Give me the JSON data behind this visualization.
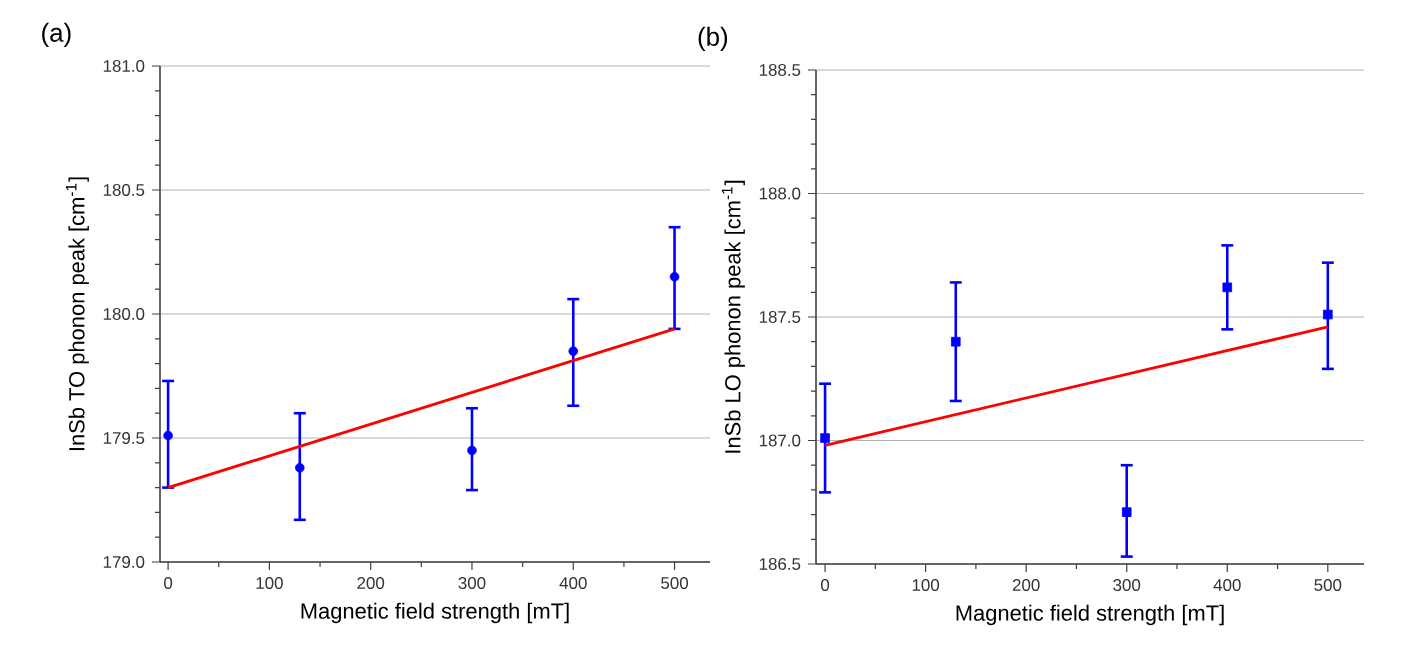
{
  "chart_data": [
    {
      "type": "scatter",
      "title": "(a)",
      "xlabel": "Magnetic field strength [mT]",
      "ylabel": "InSb TO phonon peak [cm$^{-1}$]",
      "xlim": [
        -8,
        535
      ],
      "ylim": [
        179.0,
        181.0
      ],
      "xticks": [
        0,
        100,
        200,
        300,
        400,
        500
      ],
      "yticks": [
        {
          "value": 179.0,
          "label": "179.0"
        },
        {
          "value": 179.5,
          "label": "179.5"
        },
        {
          "value": 180.0,
          "label": "180.0"
        },
        {
          "value": 180.5,
          "label": "180.5"
        },
        {
          "value": 181.0,
          "label": "181.0"
        }
      ],
      "grid": "y",
      "series": [
        {
          "color": "#0000ff",
          "marker": "circle",
          "x": [
            0,
            130,
            300,
            400,
            500
          ],
          "values": [
            179.51,
            179.38,
            179.45,
            179.85,
            180.15
          ],
          "errors": [
            [
              179.3,
              179.73
            ],
            [
              179.17,
              179.6
            ],
            [
              179.29,
              179.62
            ],
            [
              179.63,
              180.06
            ],
            [
              179.94,
              180.35
            ]
          ]
        },
        {
          "type": "line",
          "color": "#ff0000",
          "x": [
            0,
            500
          ],
          "values": [
            179.3,
            179.94
          ]
        }
      ]
    },
    {
      "type": "scatter",
      "title": "(b)",
      "xlabel": "Magnetic field strength [mT]",
      "ylabel": "InSb LO phonon peak [cm$^{-1}$]",
      "xlim": [
        -9,
        536
      ],
      "ylim": [
        186.5,
        188.5
      ],
      "xticks": [
        0,
        100,
        200,
        300,
        400,
        500
      ],
      "yticks": [
        {
          "value": 186.5,
          "label": "186.5"
        },
        {
          "value": 187.0,
          "label": "187.0"
        },
        {
          "value": 187.5,
          "label": "187.5"
        },
        {
          "value": 188.0,
          "label": "188.0"
        },
        {
          "value": 188.5,
          "label": "188.5"
        }
      ],
      "grid": "y",
      "series": [
        {
          "color": "#0000ff",
          "marker": "square",
          "x": [
            0,
            130,
            300,
            400,
            500
          ],
          "values": [
            187.01,
            187.4,
            186.71,
            187.62,
            187.51
          ],
          "errors": [
            [
              186.79,
              187.23
            ],
            [
              187.16,
              187.64
            ],
            [
              186.53,
              186.9
            ],
            [
              187.45,
              187.79
            ],
            [
              187.29,
              187.72
            ]
          ]
        },
        {
          "type": "line",
          "color": "#ff0000",
          "x": [
            0,
            500
          ],
          "values": [
            186.98,
            187.46
          ]
        }
      ]
    }
  ]
}
